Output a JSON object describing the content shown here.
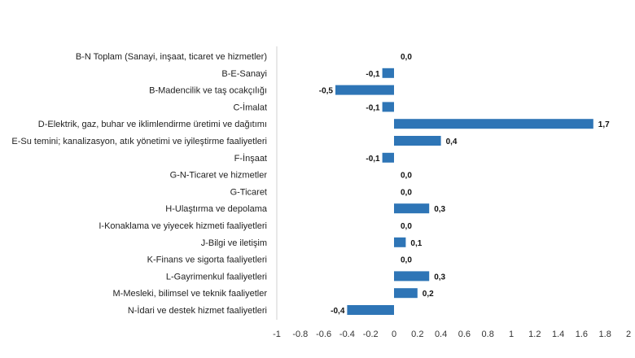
{
  "chart_data": {
    "type": "bar",
    "orientation": "horizontal",
    "title": "",
    "xlabel": "",
    "ylabel": "",
    "xlim": [
      -1,
      2
    ],
    "x_ticks": [
      -1,
      -0.8,
      -0.6,
      -0.4,
      -0.2,
      0,
      0.2,
      0.4,
      0.6,
      0.8,
      1,
      1.2,
      1.4,
      1.6,
      1.8,
      2
    ],
    "x_tick_labels": [
      "-1",
      "-0.8",
      "-0.6",
      "-0.4",
      "-0.2",
      "0",
      "0.2",
      "0.4",
      "0.6",
      "0.8",
      "1",
      "1.2",
      "1.4",
      "1.6",
      "1.8",
      "2"
    ],
    "grid": false,
    "bar_color": "#2E75B6",
    "categories": [
      "B-N Toplam (Sanayi, inşaat, ticaret ve hizmetler)",
      "B-E-Sanayi",
      "B-Madencilik ve taş ocakçılığı",
      "C-İmalat",
      "D-Elektrik, gaz, buhar ve iklimlendirme üretimi ve dağıtımı",
      "E-Su temini; kanalizasyon, atık yönetimi ve iyileştirme faaliyetleri",
      "F-İnşaat",
      "G-N-Ticaret ve hizmetler",
      "G-Ticaret",
      "H-Ulaştırma ve depolama",
      "I-Konaklama ve yiyecek hizmeti faaliyetleri",
      "J-Bilgi ve iletişim",
      "K-Finans ve sigorta faaliyetleri",
      "L-Gayrimenkul faaliyetleri",
      "M-Mesleki, bilimsel ve teknik faaliyetler",
      "N-İdari ve destek hizmet faaliyetleri"
    ],
    "values": [
      0.0,
      -0.1,
      -0.5,
      -0.1,
      1.7,
      0.4,
      -0.1,
      0.0,
      0.0,
      0.3,
      0.0,
      0.1,
      0.0,
      0.3,
      0.2,
      -0.4
    ],
    "value_labels": [
      "0,0",
      "-0,1",
      "-0,5",
      "-0,1",
      "1,7",
      "0,4",
      "-0,1",
      "0,0",
      "0,0",
      "0,3",
      "0,0",
      "0,1",
      "0,0",
      "0,3",
      "0,2",
      "-0,4"
    ]
  }
}
